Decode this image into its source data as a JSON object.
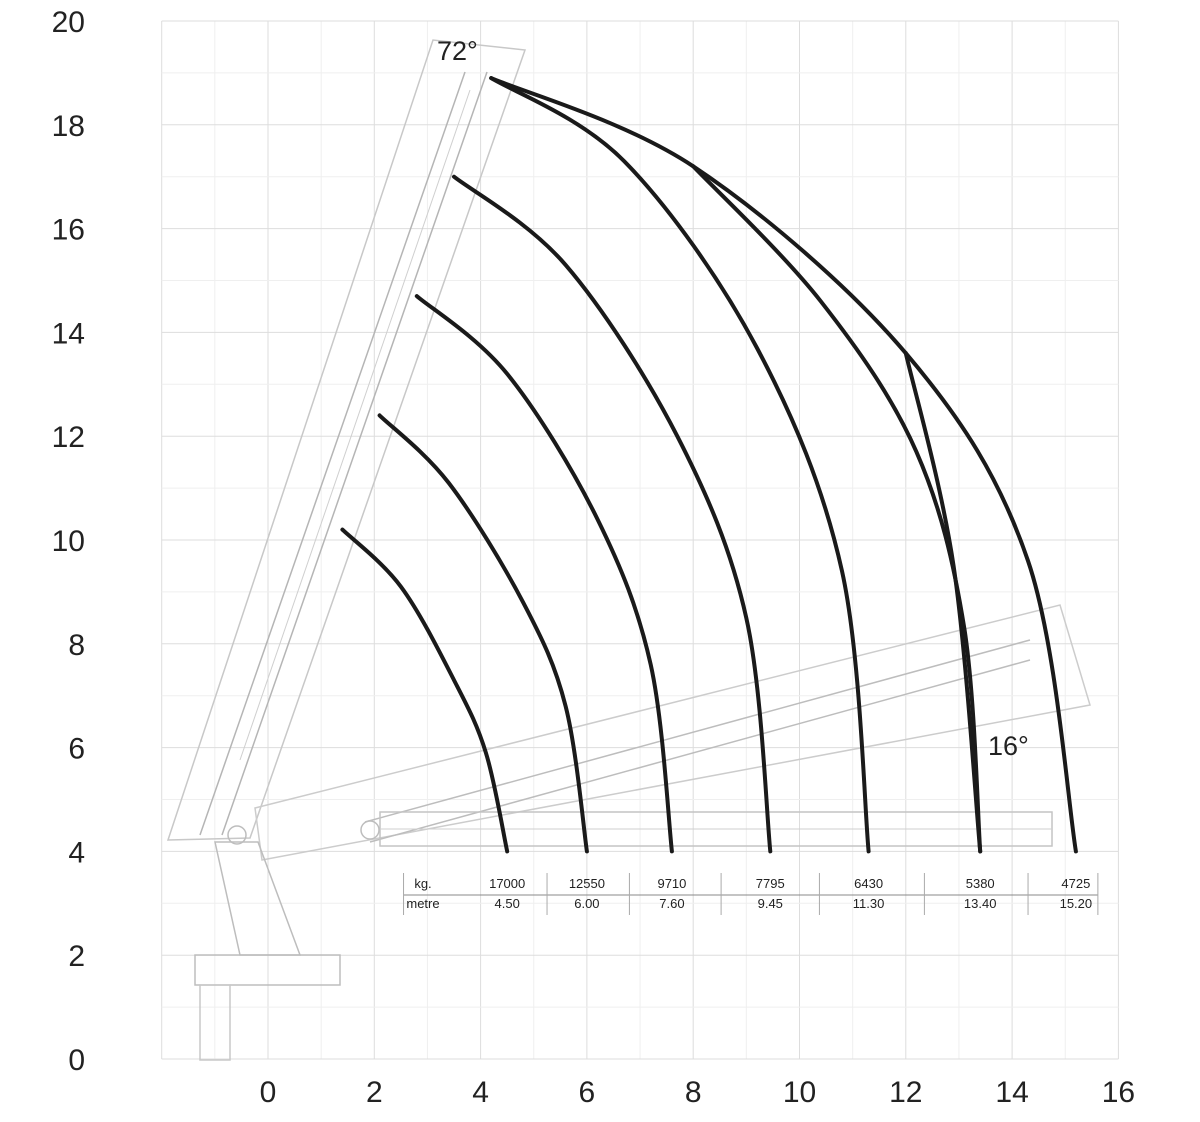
{
  "chart_data": {
    "type": "line",
    "title": "",
    "xlabel": "",
    "ylabel": "",
    "xlim": [
      -2,
      16
    ],
    "ylim": [
      0,
      20
    ],
    "xticks": [
      "0",
      "2",
      "4",
      "6",
      "8",
      "10",
      "12",
      "14",
      "16"
    ],
    "yticks": [
      "0",
      "2",
      "4",
      "6",
      "8",
      "10",
      "12",
      "14",
      "16",
      "18",
      "20"
    ],
    "grid": true,
    "angle_labels": {
      "max": "72°",
      "min": "16°"
    },
    "table_header": {
      "load": "kg.",
      "reach": "metre"
    },
    "capacity_table": [
      {
        "kg": "17000",
        "metre": "4.50"
      },
      {
        "kg": "12550",
        "metre": "6.00"
      },
      {
        "kg": "9710",
        "metre": "7.60"
      },
      {
        "kg": "7795",
        "metre": "9.45"
      },
      {
        "kg": "6430",
        "metre": "11.30"
      },
      {
        "kg": "5380",
        "metre": "13.40"
      },
      {
        "kg": "4725",
        "metre": "15.20"
      }
    ],
    "series": [
      {
        "x": [
          1.4,
          2.5,
          3.5,
          4.1,
          4.5
        ],
        "y": [
          10.2,
          9.1,
          7.3,
          5.9,
          4.0
        ]
      },
      {
        "x": [
          2.1,
          3.4,
          4.8,
          5.6,
          6.0
        ],
        "y": [
          12.4,
          11.1,
          8.8,
          6.8,
          4.0
        ]
      },
      {
        "x": [
          2.8,
          4.5,
          6.2,
          7.2,
          7.6
        ],
        "y": [
          14.7,
          13.2,
          10.4,
          7.6,
          4.0
        ]
      },
      {
        "x": [
          3.5,
          5.6,
          7.7,
          9.0,
          9.45
        ],
        "y": [
          17.0,
          15.3,
          12.0,
          8.5,
          4.0
        ]
      },
      {
        "x": [
          4.2,
          6.7,
          9.2,
          10.8,
          11.3
        ],
        "y": [
          18.9,
          17.3,
          13.7,
          9.4,
          4.0
        ]
      },
      {
        "x": [
          8.0,
          10.4,
          12.2,
          13.1,
          13.4
        ],
        "y": [
          17.2,
          14.6,
          11.7,
          8.3,
          4.0
        ]
      },
      {
        "x": [
          4.2,
          8.0,
          12.0,
          14.3,
          15.2
        ],
        "y": [
          18.9,
          17.2,
          13.6,
          9.6,
          4.0
        ]
      },
      {
        "x": [
          12.0,
          12.9,
          13.4
        ],
        "y": [
          13.6,
          9.5,
          4.0
        ]
      }
    ]
  }
}
